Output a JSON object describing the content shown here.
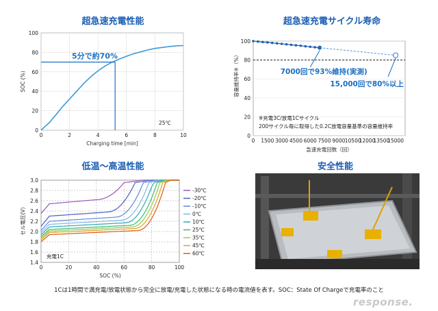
{
  "chart_data": [
    {
      "type": "line",
      "title": "超急速充電性能",
      "xlabel": "Charging time [min]",
      "ylabel": "SOC (%)",
      "xlim": [
        0,
        10
      ],
      "ylim": [
        0,
        100
      ],
      "x_ticks": [
        "0",
        "2",
        "4",
        "6",
        "8",
        "10"
      ],
      "y_ticks": [
        "0",
        "20",
        "40",
        "60",
        "80",
        "100"
      ],
      "series": [
        {
          "x": [
            0,
            0.3,
            0.6,
            1.0,
            1.5,
            2.0,
            2.5,
            3.0,
            3.5,
            4.0,
            4.5,
            5.0,
            5.5,
            6.0,
            6.5,
            7.0,
            7.5,
            8.0,
            8.5,
            9.0,
            9.5,
            10.0
          ],
          "y": [
            0,
            4,
            8,
            15,
            24,
            32,
            40,
            48,
            55,
            61,
            66,
            70,
            73,
            76,
            78.5,
            80.5,
            82.5,
            84,
            85,
            86,
            86.7,
            87
          ]
        }
      ],
      "annotation": "5分で約70%",
      "marker": {
        "x": 5.2,
        "y": 70
      },
      "temperature_label": "25℃",
      "grid": true
    },
    {
      "type": "scatter",
      "title": "超急速充電サイクル寿命",
      "xlabel": "急速充電回数（回）",
      "ylabel": "容量維持率※（%）",
      "xlim": [
        0,
        16000
      ],
      "ylim": [
        0,
        100
      ],
      "x_ticks": [
        "0",
        "1500",
        "3000",
        "4500",
        "6000",
        "7500",
        "9000",
        "10500",
        "12000",
        "13500",
        "15000"
      ],
      "y_ticks": [
        "0",
        "20",
        "40",
        "60",
        "80",
        "100"
      ],
      "series": [
        {
          "x": [
            0,
            500,
            1000,
            1500,
            2000,
            2500,
            3000,
            3500,
            4000,
            4500,
            5000,
            5500,
            6000,
            6500,
            7000
          ],
          "y": [
            100,
            99.5,
            99,
            98.6,
            98.1,
            97.6,
            97.1,
            96.6,
            96.1,
            95.6,
            95.1,
            94.5,
            94,
            93.5,
            93
          ]
        },
        {
          "x": [
            7000,
            15000
          ],
          "y": [
            93,
            85
          ]
        }
      ],
      "reference_line_y": 80,
      "annotations": [
        "7000回で93%維持(実測)",
        "15,000回で80%以上"
      ],
      "notes": [
        "※充電3C/放電1Cサイクル",
        "200サイクル毎に取得した0.2C放電容量基準の容量維持率"
      ]
    },
    {
      "type": "line",
      "title": "低温～高温性能",
      "xlabel": "SOC (%)",
      "ylabel": "セル電圧(V)",
      "xlim": [
        0,
        100
      ],
      "ylim": [
        1.4,
        3.0
      ],
      "x_ticks": [
        "0",
        "20",
        "40",
        "60",
        "80",
        "100"
      ],
      "y_ticks": [
        "1.4",
        "1.6",
        "1.8",
        "2.0",
        "2.2",
        "2.4",
        "2.6",
        "2.8",
        "3.0"
      ],
      "note": "充電1C",
      "series": [
        {
          "name": "-30℃",
          "color": "#9b59b6",
          "v0": 2.35,
          "plat": 2.62,
          "end": 3.0,
          "knee": 60
        },
        {
          "name": "-20℃",
          "color": "#4a5fc1",
          "v0": 2.1,
          "plat": 2.38,
          "end": 3.0,
          "knee": 68
        },
        {
          "name": "-10℃",
          "color": "#5b8bd8",
          "v0": 2.02,
          "plat": 2.28,
          "end": 3.0,
          "knee": 74
        },
        {
          "name": "0℃",
          "color": "#7fb3e8",
          "v0": 1.98,
          "plat": 2.22,
          "end": 3.0,
          "knee": 78
        },
        {
          "name": "10℃",
          "color": "#2aa8b5",
          "v0": 1.94,
          "plat": 2.17,
          "end": 3.0,
          "knee": 81
        },
        {
          "name": "25℃",
          "color": "#3fb86a",
          "v0": 1.9,
          "plat": 2.12,
          "end": 3.0,
          "knee": 84
        },
        {
          "name": "35℃",
          "color": "#8ccf5a",
          "v0": 1.87,
          "plat": 2.09,
          "end": 3.0,
          "knee": 86
        },
        {
          "name": "45℃",
          "color": "#e0a21a",
          "v0": 1.84,
          "plat": 2.06,
          "end": 3.0,
          "knee": 88
        },
        {
          "name": "60℃",
          "color": "#e05a10",
          "v0": 1.8,
          "plat": 2.02,
          "end": 3.0,
          "knee": 90
        }
      ]
    }
  ],
  "safety": {
    "title": "安全性能"
  },
  "footnote": "1Cは1時間で満充電/放電状態から完全に放電/充電した状態になる時の電流値を表す。SOC：State Of Chargeで充電率のこと",
  "logo": "response."
}
